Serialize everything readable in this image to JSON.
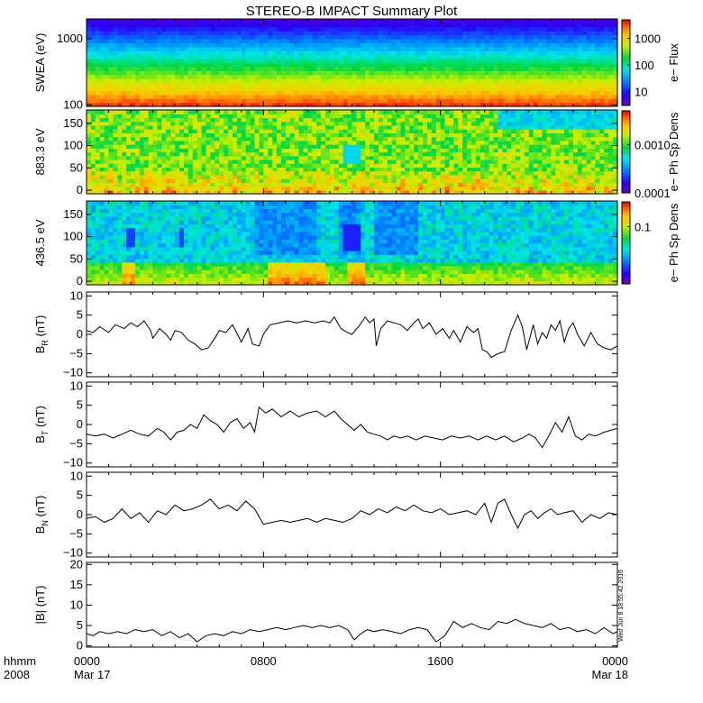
{
  "chart_data": {
    "title": "STEREO-B IMPACT Summary Plot",
    "type": "multi-panel",
    "x_axis": {
      "row_label": "hhmm",
      "year_label": "2008",
      "range_hours": [
        0,
        24
      ],
      "ticks": [
        {
          "hour": 0,
          "top": "0000",
          "bottom": "Mar 17"
        },
        {
          "hour": 8,
          "top": "0800",
          "bottom": ""
        },
        {
          "hour": 16,
          "top": "1600",
          "bottom": ""
        },
        {
          "hour": 24,
          "top": "0000",
          "bottom": "Mar 18"
        }
      ],
      "minor_step_hours": 1
    },
    "timestamp": "Wed Jun 8 18:55:42 2016",
    "panels": [
      {
        "id": "swea",
        "type": "heatmap",
        "ylabel": "SWEA (eV)",
        "y_scale": "log",
        "ylim": [
          95,
          2000
        ],
        "yticks": [
          {
            "v": 100,
            "label": "100"
          },
          {
            "v": 1000,
            "label": "1000"
          }
        ],
        "colorbar_label": "e− Flux",
        "colorbar_scale": "log",
        "colorbar_range": [
          3,
          5000
        ],
        "colorbar_ticks": [
          {
            "v": 10,
            "label": "10"
          },
          {
            "v": 100,
            "label": "100"
          },
          {
            "v": 1000,
            "label": "1000"
          }
        ]
      },
      {
        "id": "pad883",
        "type": "heatmap",
        "ylabel": "883.3 eV",
        "y_scale": "linear",
        "ylim": [
          -8,
          180
        ],
        "yticks": [
          {
            "v": 0,
            "label": "0"
          },
          {
            "v": 50,
            "label": "50"
          },
          {
            "v": 100,
            "label": "100"
          },
          {
            "v": 150,
            "label": "150"
          }
        ],
        "colorbar_label": "e− Ph Sp Dens",
        "colorbar_scale": "log",
        "colorbar_range": [
          0.0001,
          0.005
        ],
        "colorbar_ticks": [
          {
            "v": 0.0001,
            "label": "0.0001"
          },
          {
            "v": 0.001,
            "label": "0.0010"
          }
        ]
      },
      {
        "id": "pad436",
        "type": "heatmap",
        "ylabel": "436.5 eV",
        "y_scale": "linear",
        "ylim": [
          -8,
          180
        ],
        "yticks": [
          {
            "v": 0,
            "label": "0"
          },
          {
            "v": 50,
            "label": "50"
          },
          {
            "v": 100,
            "label": "100"
          },
          {
            "v": 150,
            "label": "150"
          }
        ],
        "colorbar_label": "e− Ph Sp Dens",
        "colorbar_scale": "log",
        "colorbar_range": [
          0.004,
          0.4
        ],
        "colorbar_ticks": [
          {
            "v": 0.1,
            "label": "0.1"
          }
        ]
      },
      {
        "id": "br",
        "type": "line",
        "ylabel": "B",
        "ylabel_sub": "R",
        "yunit": "(nT)",
        "ylim": [
          -11,
          11
        ],
        "yticks": [
          {
            "v": -10,
            "label": "−10"
          },
          {
            "v": -5,
            "label": "−5"
          },
          {
            "v": 0,
            "label": "0"
          },
          {
            "v": 5,
            "label": "5"
          },
          {
            "v": 10,
            "label": "10"
          }
        ],
        "x": [
          0,
          0.3,
          0.6,
          1.0,
          1.3,
          1.7,
          2.0,
          2.3,
          2.6,
          2.9,
          3.0,
          3.3,
          3.6,
          3.8,
          4.0,
          4.3,
          4.6,
          4.9,
          5.2,
          5.5,
          5.8,
          6.0,
          6.3,
          6.6,
          7.0,
          7.3,
          7.5,
          7.8,
          8.0,
          8.3,
          8.7,
          9.1,
          9.5,
          9.9,
          10.3,
          10.7,
          11.0,
          11.2,
          11.5,
          11.8,
          12.0,
          12.3,
          12.6,
          12.8,
          13.0,
          13.1,
          13.3,
          13.6,
          13.9,
          14.2,
          14.5,
          14.8,
          15.0,
          15.2,
          15.5,
          15.8,
          16.1,
          16.4,
          16.6,
          16.9,
          17.2,
          17.5,
          17.7,
          17.9,
          18.1,
          18.3,
          18.6,
          18.9,
          19.2,
          19.5,
          19.7,
          19.9,
          20.2,
          20.4,
          20.6,
          20.8,
          21.0,
          21.2,
          21.4,
          21.6,
          21.8,
          22.0,
          22.2,
          22.5,
          22.8,
          23.1,
          23.4,
          23.7,
          24.0
        ],
        "y": [
          1.0,
          0.5,
          2.0,
          0.5,
          2.5,
          1.5,
          3.0,
          2.0,
          3.5,
          1.0,
          -1.0,
          1.5,
          0.0,
          -1.5,
          1.0,
          0.5,
          -1.5,
          -2.5,
          -4.0,
          -3.5,
          -1.0,
          1.0,
          0.5,
          2.5,
          -2.0,
          1.5,
          -2.5,
          -3.0,
          0.0,
          2.5,
          3.0,
          3.5,
          3.0,
          3.5,
          3.0,
          3.5,
          3.0,
          4.5,
          1.5,
          0.5,
          0.0,
          2.0,
          4.5,
          3.0,
          4.0,
          -3.0,
          1.5,
          3.5,
          3.0,
          2.5,
          1.0,
          3.0,
          4.0,
          1.5,
          3.0,
          0.0,
          1.5,
          -1.0,
          1.0,
          -2.0,
          2.0,
          0.5,
          1.5,
          -4.0,
          -4.5,
          -6.0,
          -5.0,
          -4.5,
          1.0,
          5.0,
          2.0,
          -4.0,
          2.5,
          -2.5,
          0.5,
          -1.0,
          2.5,
          1.0,
          3.5,
          -2.0,
          1.5,
          3.0,
          0.0,
          -3.0,
          0.5,
          -2.5,
          -3.5,
          -4.0,
          -3.0
        ]
      },
      {
        "id": "bt",
        "type": "line",
        "ylabel": "B",
        "ylabel_sub": "T",
        "yunit": "(nT)",
        "ylim": [
          -11,
          11
        ],
        "yticks": [
          {
            "v": -10,
            "label": "−10"
          },
          {
            "v": -5,
            "label": "−5"
          },
          {
            "v": 0,
            "label": "0"
          },
          {
            "v": 5,
            "label": "5"
          },
          {
            "v": 10,
            "label": "10"
          }
        ],
        "x": [
          0,
          0.4,
          0.8,
          1.2,
          1.6,
          2.0,
          2.4,
          2.8,
          3.2,
          3.5,
          3.8,
          4.1,
          4.4,
          4.7,
          5.0,
          5.3,
          5.6,
          5.9,
          6.2,
          6.5,
          6.8,
          7.1,
          7.4,
          7.6,
          7.8,
          8.1,
          8.4,
          8.8,
          9.2,
          9.6,
          10.0,
          10.4,
          10.8,
          11.2,
          11.5,
          11.8,
          12.1,
          12.4,
          12.7,
          13.0,
          13.3,
          13.6,
          13.9,
          14.2,
          14.5,
          14.9,
          15.3,
          15.7,
          16.1,
          16.5,
          16.9,
          17.3,
          17.7,
          18.1,
          18.5,
          18.9,
          19.3,
          19.7,
          20.0,
          20.3,
          20.6,
          20.9,
          21.2,
          21.5,
          21.8,
          22.1,
          22.4,
          22.7,
          23.0,
          23.4,
          23.7,
          24.0
        ],
        "y": [
          -2.5,
          -3.0,
          -2.5,
          -3.5,
          -2.5,
          -1.5,
          -2.5,
          -3.0,
          -1.0,
          -2.0,
          -4.0,
          -2.0,
          -1.5,
          0.0,
          -1.0,
          2.5,
          1.0,
          0.0,
          -2.0,
          0.5,
          1.5,
          -1.0,
          0.5,
          -2.0,
          4.5,
          3.0,
          4.0,
          2.0,
          3.5,
          2.0,
          3.0,
          3.5,
          2.0,
          3.5,
          1.5,
          0.0,
          -1.5,
          0.0,
          -2.0,
          -2.5,
          -3.0,
          -4.0,
          -3.0,
          -3.5,
          -3.0,
          -4.0,
          -3.0,
          -3.5,
          -4.0,
          -3.0,
          -3.5,
          -3.0,
          -4.0,
          -3.0,
          -4.0,
          -3.0,
          -4.5,
          -3.5,
          -2.5,
          -3.5,
          -6.0,
          -3.0,
          0.5,
          -2.0,
          2.0,
          -3.0,
          -4.0,
          -2.5,
          -3.0,
          -2.0,
          -1.5,
          -1.0
        ]
      },
      {
        "id": "bn",
        "type": "line",
        "ylabel": "B",
        "ylabel_sub": "N",
        "yunit": "(nT)",
        "ylim": [
          -11,
          11
        ],
        "yticks": [
          {
            "v": -10,
            "label": "−10"
          },
          {
            "v": -5,
            "label": "−5"
          },
          {
            "v": 0,
            "label": "0"
          },
          {
            "v": 5,
            "label": "5"
          },
          {
            "v": 10,
            "label": "10"
          }
        ],
        "x": [
          0,
          0.4,
          0.8,
          1.2,
          1.6,
          2.0,
          2.4,
          2.8,
          3.2,
          3.6,
          4.0,
          4.4,
          4.8,
          5.2,
          5.6,
          6.0,
          6.4,
          6.8,
          7.2,
          7.6,
          8.0,
          8.4,
          8.8,
          9.2,
          9.6,
          10.0,
          10.4,
          10.8,
          11.2,
          11.6,
          12.0,
          12.4,
          12.8,
          13.2,
          13.6,
          14.0,
          14.4,
          14.8,
          15.2,
          15.6,
          16.0,
          16.4,
          16.8,
          17.2,
          17.6,
          18.0,
          18.3,
          18.6,
          18.9,
          19.2,
          19.5,
          19.8,
          20.1,
          20.4,
          20.7,
          21.0,
          21.3,
          21.6,
          22.0,
          22.4,
          22.8,
          23.2,
          23.6,
          24.0
        ],
        "y": [
          -1.0,
          -0.5,
          -2.0,
          -1.0,
          1.5,
          -1.0,
          0.5,
          -2.0,
          1.0,
          0.0,
          2.5,
          1.0,
          1.5,
          2.5,
          4.0,
          1.5,
          2.5,
          1.0,
          3.5,
          1.5,
          -2.5,
          -2.0,
          -1.5,
          -2.0,
          -1.5,
          -1.0,
          -2.0,
          -1.0,
          -1.5,
          -2.0,
          -1.0,
          1.0,
          0.0,
          1.5,
          0.5,
          2.0,
          1.0,
          2.5,
          1.0,
          0.5,
          1.5,
          0.0,
          0.5,
          1.0,
          0.0,
          3.0,
          -2.0,
          3.0,
          4.0,
          0.0,
          -3.5,
          0.0,
          1.0,
          -1.0,
          0.5,
          1.5,
          0.0,
          0.5,
          1.0,
          -2.0,
          0.0,
          -1.0,
          0.5,
          0.0
        ]
      },
      {
        "id": "btot",
        "type": "line",
        "ylabel": "|B|",
        "ylabel_sub": "",
        "yunit": "(nT)",
        "ylim": [
          -0.3,
          20.5
        ],
        "yticks": [
          {
            "v": 0,
            "label": "0"
          },
          {
            "v": 5,
            "label": "5"
          },
          {
            "v": 10,
            "label": "10"
          },
          {
            "v": 15,
            "label": "15"
          },
          {
            "v": 20,
            "label": "20"
          }
        ],
        "x": [
          0,
          0.3,
          0.6,
          1.0,
          1.4,
          1.8,
          2.2,
          2.6,
          3.0,
          3.4,
          3.8,
          4.2,
          4.6,
          5.0,
          5.4,
          5.8,
          6.2,
          6.6,
          7.0,
          7.4,
          7.8,
          8.2,
          8.6,
          9.0,
          9.4,
          9.8,
          10.2,
          10.6,
          11.0,
          11.4,
          11.8,
          12.1,
          12.4,
          12.7,
          13.0,
          13.4,
          13.8,
          14.2,
          14.6,
          15.0,
          15.4,
          15.8,
          16.2,
          16.6,
          17.0,
          17.4,
          17.8,
          18.2,
          18.6,
          19.0,
          19.4,
          19.8,
          20.2,
          20.6,
          21.0,
          21.4,
          21.8,
          22.2,
          22.6,
          23.0,
          23.4,
          23.8,
          24.0
        ],
        "y": [
          3.0,
          2.5,
          3.5,
          3.0,
          3.5,
          3.0,
          4.0,
          3.5,
          4.0,
          2.5,
          3.5,
          2.0,
          3.0,
          1.0,
          2.5,
          3.0,
          2.5,
          3.5,
          3.0,
          4.0,
          3.5,
          4.0,
          4.5,
          4.0,
          4.5,
          5.0,
          4.5,
          5.0,
          4.5,
          5.0,
          4.0,
          1.5,
          3.0,
          4.0,
          3.5,
          4.0,
          3.5,
          3.0,
          4.0,
          4.5,
          4.0,
          1.0,
          2.5,
          6.0,
          4.5,
          5.5,
          4.5,
          4.0,
          6.0,
          5.5,
          6.5,
          5.5,
          5.0,
          4.5,
          5.5,
          4.0,
          4.5,
          3.5,
          4.0,
          3.0,
          4.5,
          3.0,
          3.5
        ]
      }
    ]
  }
}
